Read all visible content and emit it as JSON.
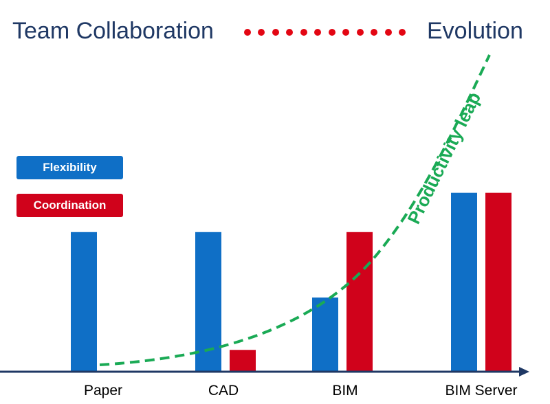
{
  "header": {
    "left_text": "Team Collaboration",
    "right_text": "Evolution",
    "dots_count": 12
  },
  "colors": {
    "title": "#1f3864",
    "dots": "#e30613",
    "flexibility": "#0f6fc6",
    "coordination": "#d0021b",
    "curve": "#1aaa55",
    "axis": "#1f3864"
  },
  "chart_data": {
    "type": "bar",
    "categories": [
      "Paper",
      "CAD",
      "BIM",
      "BIM Server"
    ],
    "series": [
      {
        "name": "Flexibility",
        "values": [
          3.2,
          3.2,
          1.7,
          4.1
        ]
      },
      {
        "name": "Coordination",
        "values": [
          0,
          0.5,
          3.2,
          4.1
        ]
      }
    ],
    "ylim": [
      0,
      6
    ],
    "grid": false,
    "legend_placement": "left",
    "annotation": {
      "label": "Productivity leap",
      "style": "dashed-curve",
      "trend": "exponential"
    }
  }
}
